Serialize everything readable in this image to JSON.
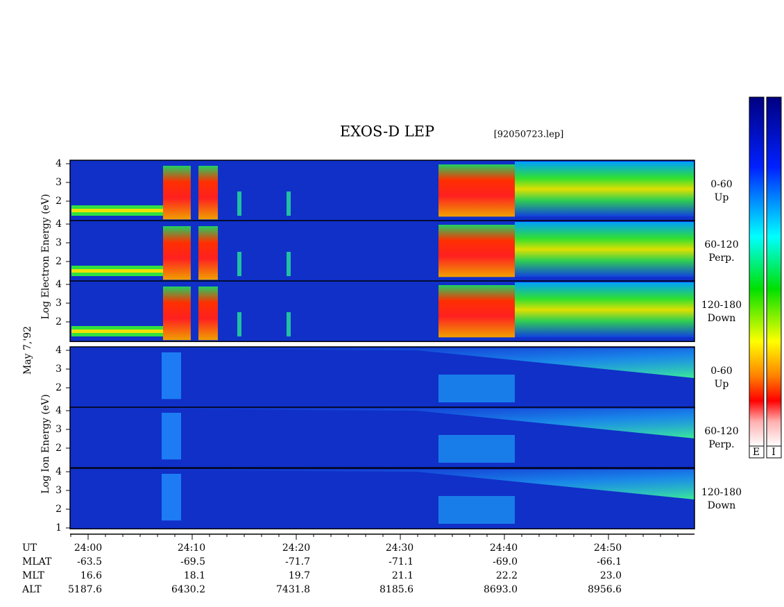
{
  "header": {
    "title": "EXOS-D LEP",
    "file": "[92050723.lep]"
  },
  "side_labels": {
    "date": "May 7,'92",
    "electron": "Log Electron Energy (eV)",
    "ion": "Log Ion Energy (eV)"
  },
  "panels": [
    {
      "species": "electron",
      "range": "0-60",
      "direction": "Up",
      "ticks": [
        "2",
        "3",
        "4"
      ]
    },
    {
      "species": "electron",
      "range": "60-120",
      "direction": "Perp.",
      "ticks": [
        "2",
        "3",
        "4"
      ]
    },
    {
      "species": "electron",
      "range": "120-180",
      "direction": "Down",
      "ticks": [
        "2",
        "3",
        "4"
      ]
    },
    {
      "species": "ion",
      "range": "0-60",
      "direction": "Up",
      "ticks": [
        "2",
        "3",
        "4"
      ]
    },
    {
      "species": "ion",
      "range": "60-120",
      "direction": "Perp.",
      "ticks": [
        "2",
        "3",
        "4"
      ]
    },
    {
      "species": "ion",
      "range": "120-180",
      "direction": "Down",
      "ticks": [
        "1",
        "2",
        "3",
        "4"
      ]
    }
  ],
  "time_axis": {
    "rows": [
      {
        "label": "UT",
        "values": [
          "24:00",
          "24:10",
          "24:20",
          "24:30",
          "24:40",
          "24:50"
        ]
      },
      {
        "label": "MLAT",
        "values": [
          "-63.5",
          "-69.5",
          "-71.7",
          "-71.1",
          "-69.0",
          "-66.1"
        ]
      },
      {
        "label": "MLT",
        "values": [
          "16.6",
          "18.1",
          "19.7",
          "21.1",
          "22.2",
          "23.0"
        ]
      },
      {
        "label": "ALT",
        "values": [
          "5187.6",
          "6430.2",
          "7431.8",
          "8185.6",
          "8693.0",
          "8956.6"
        ]
      }
    ]
  },
  "colorbar": {
    "labels": [
      "E",
      "I"
    ]
  }
}
